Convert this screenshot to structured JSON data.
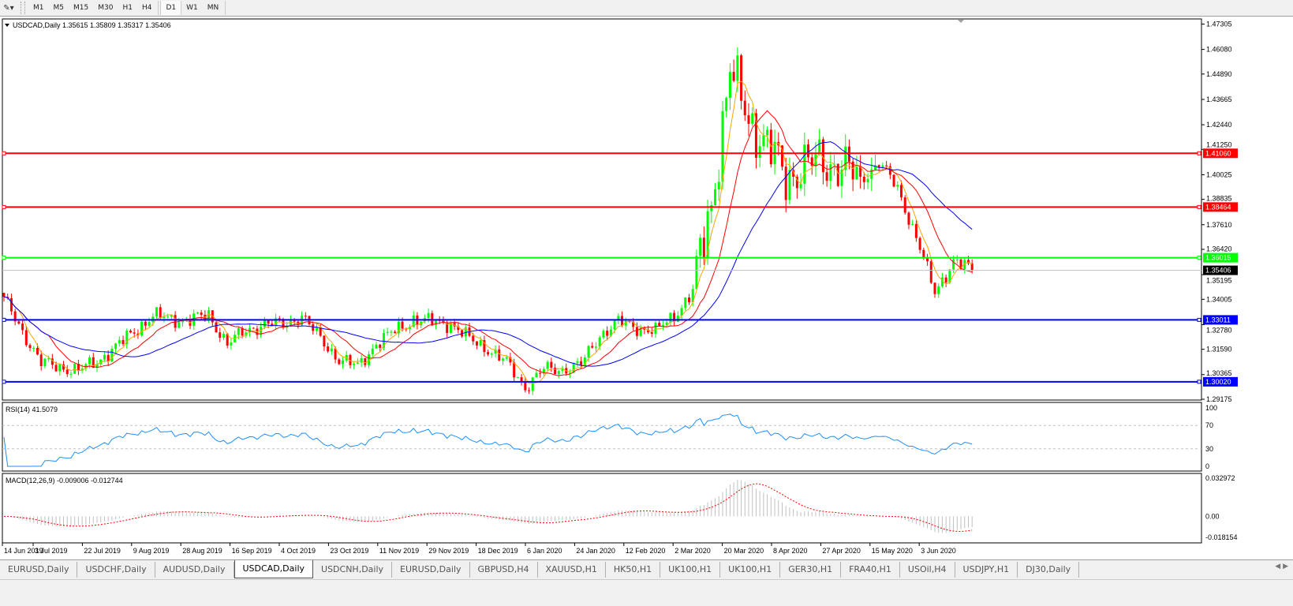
{
  "toolbar": {
    "timeframes": [
      "M1",
      "M5",
      "M15",
      "M30",
      "H1",
      "H4",
      "D1",
      "W1",
      "MN"
    ],
    "active_timeframe": "D1"
  },
  "chart": {
    "header": "USDCAD,Daily  1.35615 1.35809 1.35317 1.35406",
    "symbol": "USDCAD",
    "period": "Daily",
    "ohlc": {
      "open": "1.35615",
      "high": "1.35809",
      "low": "1.35317",
      "close": "1.35406"
    },
    "price_axis": [
      "1.47305",
      "1.46080",
      "1.44890",
      "1.43665",
      "1.42440",
      "1.41250",
      "1.40025",
      "1.38835",
      "1.37610",
      "1.36420",
      "1.35195",
      "1.34005",
      "1.32780",
      "1.31590",
      "1.30365",
      "1.29175"
    ],
    "price_range": [
      1.29175,
      1.47305
    ],
    "current_price": {
      "label": "1.35406",
      "value": 1.35406,
      "color": "#000000"
    },
    "levels": [
      {
        "label": "1.41060",
        "value": 1.4106,
        "color": "#ff0000"
      },
      {
        "label": "1.38464",
        "value": 1.38464,
        "color": "#ff0000"
      },
      {
        "label": "1.36015",
        "value": 1.36015,
        "color": "#00ff00"
      },
      {
        "label": "1.33011",
        "value": 1.33011,
        "color": "#0000ff"
      },
      {
        "label": "1.30020",
        "value": 1.3002,
        "color": "#0000ff"
      }
    ],
    "weekly_closes": [
      1.3399,
      1.3246,
      1.3093,
      1.3074,
      1.3055,
      1.3101,
      1.3169,
      1.3246,
      1.3322,
      1.3303,
      1.3303,
      1.3322,
      1.3188,
      1.3246,
      1.3284,
      1.3276,
      1.3322,
      1.3208,
      1.3112,
      1.3074,
      1.3188,
      1.3246,
      1.3303,
      1.3291,
      1.3284,
      1.3208,
      1.3162,
      1.3093,
      1.2978,
      1.3062,
      1.3062,
      1.3085,
      1.3227,
      1.3291,
      1.3265,
      1.3246,
      1.3322,
      1.3437,
      1.3856,
      1.4505,
      1.4276,
      1.4143,
      1.399,
      1.4047,
      1.4066,
      1.4047,
      1.3971,
      1.4066,
      1.3933,
      1.3704,
      1.3429,
      1.3589,
      1.35406
    ],
    "colors": {
      "bull": "#00ff00",
      "bear": "#ff0000",
      "ma_fast": "#ffa500",
      "ma_mid": "#ff0000",
      "ma_slow": "#0000ff"
    },
    "dates": [
      "14 Jun 2019",
      "3 Jul 2019",
      "22 Jul 2019",
      "9 Aug 2019",
      "28 Aug 2019",
      "16 Sep 2019",
      "4 Oct 2019",
      "23 Oct 2019",
      "11 Nov 2019",
      "29 Nov 2019",
      "18 Dec 2019",
      "6 Jan 2020",
      "24 Jan 2020",
      "12 Feb 2020",
      "2 Mar 2020",
      "20 Mar 2020",
      "8 Apr 2020",
      "27 Apr 2020",
      "15 May 2020",
      "3 Jun 2020"
    ]
  },
  "rsi": {
    "header": "RSI(14) 41.5079",
    "axis": [
      "100",
      "70",
      "30",
      "0"
    ],
    "levels": [
      70,
      30
    ],
    "color": "#1e90ff"
  },
  "macd": {
    "header": "MACD(12,26,9) -0.009006 -0.012744",
    "axis": [
      "0.032972",
      "0.00",
      "-0.018154"
    ],
    "range": [
      -0.018154,
      0.032972
    ],
    "histogram_color": "#c0c0c0",
    "signal_color": "#ff0000"
  },
  "tabs": [
    "EURUSD,Daily",
    "USDCHF,Daily",
    "AUDUSD,Daily",
    "USDCAD,Daily",
    "USDCNH,Daily",
    "EURUSD,Daily",
    "GBPUSD,H4",
    "XAUUSD,H1",
    "HK50,H1",
    "UK100,H1",
    "UK100,H1",
    "GER30,H1",
    "FRA40,H1",
    "USOil,H4",
    "USDJPY,H1",
    "DJ30,Daily"
  ],
  "active_tab": "USDCAD,Daily"
}
